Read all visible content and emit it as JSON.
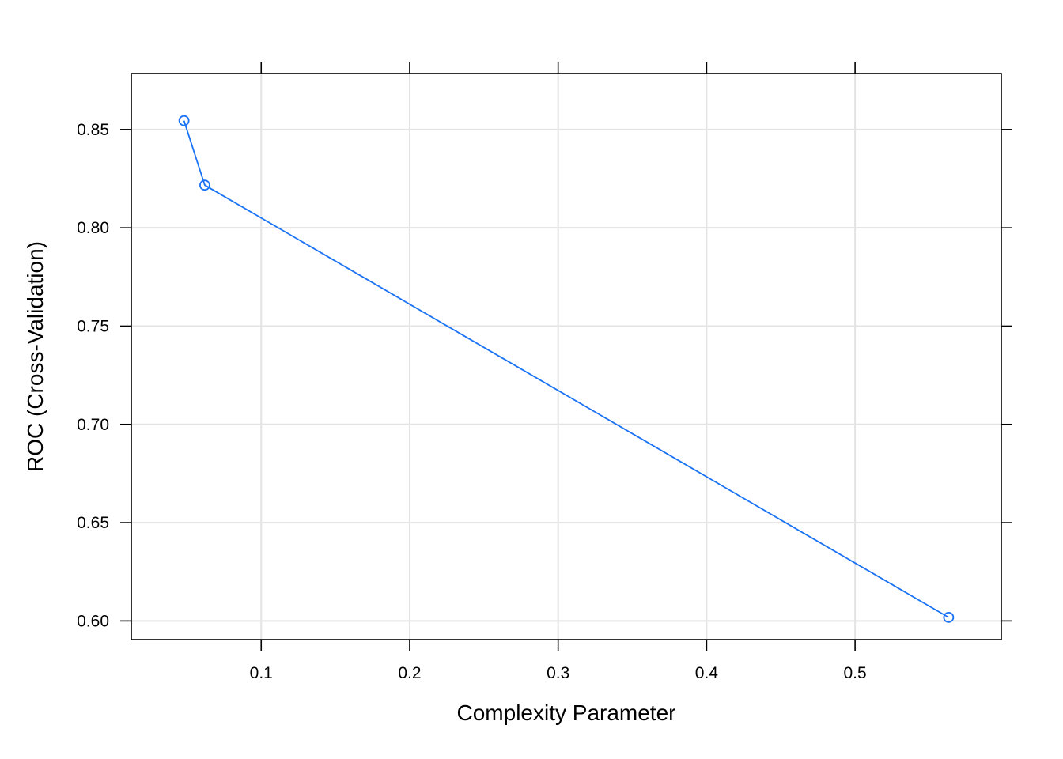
{
  "chart_data": {
    "type": "line",
    "title": "",
    "xlabel": "Complexity Parameter",
    "ylabel": "ROC (Cross-Validation)",
    "xlim": [
      0.0125,
      0.5985
    ],
    "ylim": [
      0.5905,
      0.8785
    ],
    "x_ticks": [
      0.1,
      0.2,
      0.3,
      0.4,
      0.5
    ],
    "x_tick_labels": [
      "0.1",
      "0.2",
      "0.3",
      "0.4",
      "0.5"
    ],
    "y_ticks": [
      0.6,
      0.65,
      0.7,
      0.75,
      0.8,
      0.85
    ],
    "y_tick_labels": [
      "0.60",
      "0.65",
      "0.70",
      "0.75",
      "0.80",
      "0.85"
    ],
    "grid": true,
    "series": [
      {
        "color": "#1a73f5",
        "marker": "open-circle",
        "x": [
          0.048,
          0.062,
          0.563
        ],
        "y": [
          0.8545,
          0.8217,
          0.6018
        ]
      }
    ]
  }
}
